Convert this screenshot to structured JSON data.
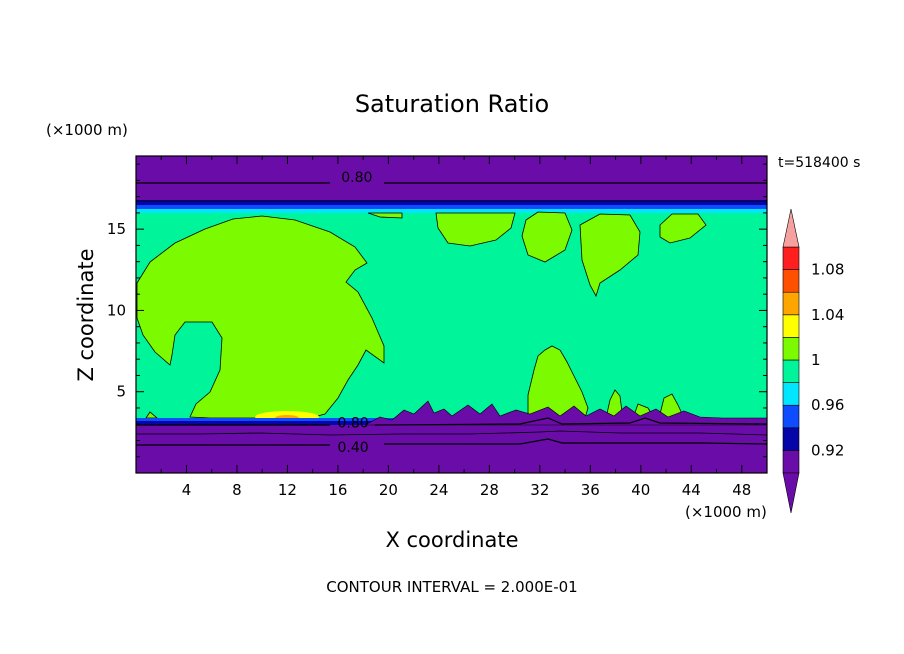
{
  "chart_data": {
    "type": "heatmap",
    "title": "Saturation Ratio",
    "xlabel": "X coordinate",
    "ylabel": "Z coordinate",
    "x_unit": "(×1000 m)",
    "y_unit": "(×1000 m)",
    "time_label": "t=518400 s",
    "footer": "CONTOUR INTERVAL = 2.000E-01",
    "xlim": [
      0,
      50
    ],
    "ylim": [
      0,
      19.5
    ],
    "x_ticks": [
      4,
      8,
      12,
      16,
      20,
      24,
      28,
      32,
      36,
      40,
      44,
      48
    ],
    "y_ticks": [
      5,
      10,
      15
    ],
    "contour_interval": 0.2,
    "contour_labels": [
      {
        "text": "0.80",
        "x": 17.5,
        "z": 18.2
      },
      {
        "text": "0.80",
        "x": 17.2,
        "z": 3.1
      },
      {
        "text": "0.40",
        "x": 17.2,
        "z": 1.6
      }
    ],
    "colorbar": {
      "levels": [
        0.9,
        0.92,
        0.94,
        0.96,
        0.98,
        1.0,
        1.02,
        1.04,
        1.06,
        1.08,
        1.1
      ],
      "tick_labels": [
        "0.92",
        "0.96",
        "1",
        "1.04",
        "1.08"
      ],
      "colors": [
        "#6a0ca8",
        "#0505a8",
        "#0e4cff",
        "#00e6ff",
        "#00f59a",
        "#7bfa00",
        "#ffff00",
        "#ffa500",
        "#ff5000",
        "#ff1f1f",
        "#f7a0a0"
      ]
    }
  }
}
